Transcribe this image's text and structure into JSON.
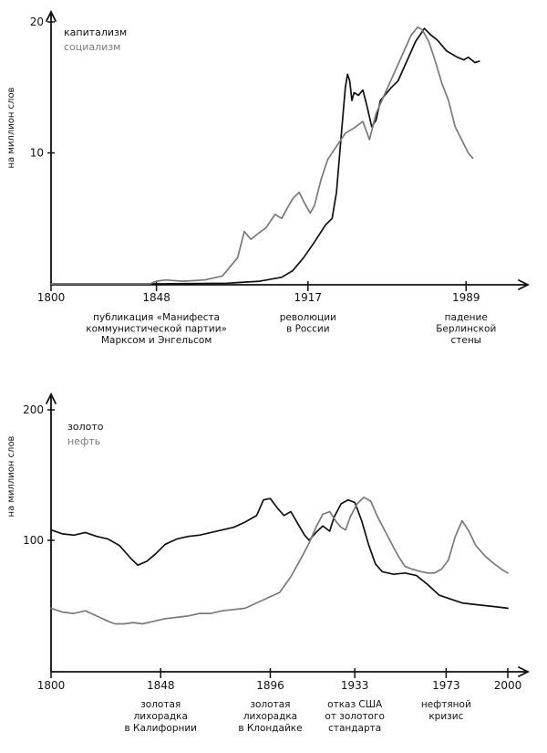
{
  "colors": {
    "black": "#111111",
    "gray": "#7a7a7a"
  },
  "chart_data": [
    {
      "type": "line",
      "ylabel": "на миллион слов",
      "xlim": [
        1800,
        2008
      ],
      "ylim": [
        0,
        20
      ],
      "yticks": [
        10,
        20
      ],
      "xticks": [
        1800,
        1848,
        1917,
        1989
      ],
      "legend": [
        {
          "name": "капитализм",
          "color": "#111111"
        },
        {
          "name": "социализм",
          "color": "#7a7a7a"
        }
      ],
      "annotations": [
        {
          "x": 1848,
          "lines": [
            "публикация «Манифеста",
            "коммунистической партии»",
            "Марксом и Энгельсом"
          ]
        },
        {
          "x": 1917,
          "lines": [
            "революции",
            "в России"
          ]
        },
        {
          "x": 1989,
          "lines": [
            "падение",
            "Берлинской",
            "стены"
          ]
        }
      ],
      "series": [
        {
          "name": "капитализм",
          "color": "#111111",
          "points": [
            [
              1800,
              0
            ],
            [
              1850,
              0
            ],
            [
              1880,
              0.05
            ],
            [
              1895,
              0.2
            ],
            [
              1905,
              0.5
            ],
            [
              1910,
              1
            ],
            [
              1915,
              2
            ],
            [
              1920,
              3.2
            ],
            [
              1925,
              4.5
            ],
            [
              1928,
              5
            ],
            [
              1930,
              7
            ],
            [
              1932,
              11
            ],
            [
              1934,
              15
            ],
            [
              1935,
              16
            ],
            [
              1936,
              15.5
            ],
            [
              1937,
              14
            ],
            [
              1938,
              14.6
            ],
            [
              1940,
              14.4
            ],
            [
              1942,
              14.8
            ],
            [
              1944,
              13.5
            ],
            [
              1946,
              12
            ],
            [
              1948,
              12.5
            ],
            [
              1950,
              14
            ],
            [
              1955,
              15
            ],
            [
              1958,
              15.5
            ],
            [
              1962,
              17
            ],
            [
              1966,
              18.5
            ],
            [
              1970,
              19.5
            ],
            [
              1973,
              19
            ],
            [
              1976,
              18.6
            ],
            [
              1980,
              17.8
            ],
            [
              1985,
              17.3
            ],
            [
              1988,
              17.1
            ],
            [
              1990,
              17.3
            ],
            [
              1993,
              16.9
            ],
            [
              1995,
              17
            ]
          ]
        },
        {
          "name": "социализм",
          "color": "#7a7a7a",
          "points": [
            [
              1800,
              0
            ],
            [
              1845,
              0
            ],
            [
              1848,
              0.2
            ],
            [
              1852,
              0.3
            ],
            [
              1860,
              0.2
            ],
            [
              1870,
              0.3
            ],
            [
              1878,
              0.6
            ],
            [
              1885,
              2
            ],
            [
              1888,
              4
            ],
            [
              1891,
              3.4
            ],
            [
              1894,
              3.8
            ],
            [
              1898,
              4.3
            ],
            [
              1902,
              5.3
            ],
            [
              1905,
              5
            ],
            [
              1910,
              6.5
            ],
            [
              1913,
              7
            ],
            [
              1915,
              6.3
            ],
            [
              1918,
              5.4
            ],
            [
              1920,
              6
            ],
            [
              1923,
              8
            ],
            [
              1926,
              9.5
            ],
            [
              1930,
              10.5
            ],
            [
              1934,
              11.5
            ],
            [
              1938,
              11.9
            ],
            [
              1942,
              12.4
            ],
            [
              1945,
              11
            ],
            [
              1948,
              13
            ],
            [
              1952,
              14.5
            ],
            [
              1956,
              16
            ],
            [
              1960,
              17.5
            ],
            [
              1964,
              19
            ],
            [
              1967,
              19.6
            ],
            [
              1969,
              19.4
            ],
            [
              1972,
              18.5
            ],
            [
              1975,
              17
            ],
            [
              1978,
              15.3
            ],
            [
              1981,
              14
            ],
            [
              1984,
              12
            ],
            [
              1987,
              11
            ],
            [
              1990,
              10
            ],
            [
              1992,
              9.6
            ]
          ]
        }
      ]
    },
    {
      "type": "line",
      "ylabel": "на миллион слов",
      "xlim": [
        1800,
        2000
      ],
      "ylim": [
        0,
        200
      ],
      "yticks": [
        100,
        200
      ],
      "xticks": [
        1800,
        1848,
        1896,
        1933,
        1973,
        2000
      ],
      "legend": [
        {
          "name": "золото",
          "color": "#111111"
        },
        {
          "name": "нефть",
          "color": "#7a7a7a"
        }
      ],
      "annotations": [
        {
          "x": 1848,
          "lines": [
            "золотая",
            "лихорадка",
            "в Калифорнии"
          ]
        },
        {
          "x": 1896,
          "lines": [
            "золотая",
            "лихорадка",
            "в Клондайке"
          ]
        },
        {
          "x": 1933,
          "lines": [
            "отказ США",
            "от золотого",
            "стандарта"
          ]
        },
        {
          "x": 1973,
          "lines": [
            "нефтяной",
            "кризис"
          ]
        }
      ],
      "series": [
        {
          "name": "золото",
          "color": "#111111",
          "points": [
            [
              1800,
              108
            ],
            [
              1805,
              105
            ],
            [
              1810,
              104
            ],
            [
              1815,
              106
            ],
            [
              1820,
              103
            ],
            [
              1825,
              101
            ],
            [
              1830,
              96
            ],
            [
              1835,
              86
            ],
            [
              1838,
              81
            ],
            [
              1842,
              84
            ],
            [
              1846,
              90
            ],
            [
              1850,
              97
            ],
            [
              1855,
              101
            ],
            [
              1860,
              103
            ],
            [
              1865,
              104
            ],
            [
              1870,
              106
            ],
            [
              1875,
              108
            ],
            [
              1880,
              110
            ],
            [
              1885,
              114
            ],
            [
              1890,
              119
            ],
            [
              1893,
              131
            ],
            [
              1896,
              132
            ],
            [
              1899,
              125
            ],
            [
              1902,
              119
            ],
            [
              1905,
              122
            ],
            [
              1908,
              113
            ],
            [
              1911,
              104
            ],
            [
              1913,
              100
            ],
            [
              1916,
              106
            ],
            [
              1919,
              111
            ],
            [
              1922,
              107
            ],
            [
              1924,
              118
            ],
            [
              1927,
              128
            ],
            [
              1930,
              131
            ],
            [
              1933,
              129
            ],
            [
              1936,
              115
            ],
            [
              1939,
              97
            ],
            [
              1942,
              82
            ],
            [
              1945,
              76
            ],
            [
              1950,
              74
            ],
            [
              1955,
              75
            ],
            [
              1960,
              73
            ],
            [
              1965,
              66
            ],
            [
              1970,
              58
            ],
            [
              1975,
              55
            ],
            [
              1980,
              52
            ],
            [
              1985,
              51
            ],
            [
              1990,
              50
            ],
            [
              1995,
              49
            ],
            [
              2000,
              48
            ]
          ]
        },
        {
          "name": "нефть",
          "color": "#7a7a7a",
          "points": [
            [
              1800,
              48
            ],
            [
              1805,
              45
            ],
            [
              1810,
              44
            ],
            [
              1815,
              46
            ],
            [
              1820,
              42
            ],
            [
              1825,
              38
            ],
            [
              1828,
              36
            ],
            [
              1832,
              36
            ],
            [
              1836,
              37
            ],
            [
              1840,
              36
            ],
            [
              1845,
              38
            ],
            [
              1850,
              40
            ],
            [
              1855,
              41
            ],
            [
              1860,
              42
            ],
            [
              1865,
              44
            ],
            [
              1870,
              44
            ],
            [
              1875,
              46
            ],
            [
              1880,
              47
            ],
            [
              1885,
              48
            ],
            [
              1890,
              52
            ],
            [
              1895,
              56
            ],
            [
              1900,
              60
            ],
            [
              1905,
              72
            ],
            [
              1910,
              88
            ],
            [
              1913,
              98
            ],
            [
              1916,
              110
            ],
            [
              1919,
              120
            ],
            [
              1922,
              122
            ],
            [
              1925,
              114
            ],
            [
              1927,
              110
            ],
            [
              1929,
              108
            ],
            [
              1931,
              118
            ],
            [
              1934,
              128
            ],
            [
              1937,
              133
            ],
            [
              1940,
              130
            ],
            [
              1943,
              118
            ],
            [
              1946,
              108
            ],
            [
              1949,
              98
            ],
            [
              1952,
              88
            ],
            [
              1955,
              80
            ],
            [
              1958,
              78
            ],
            [
              1962,
              76
            ],
            [
              1965,
              75
            ],
            [
              1968,
              75
            ],
            [
              1971,
              78
            ],
            [
              1974,
              85
            ],
            [
              1977,
              103
            ],
            [
              1980,
              115
            ],
            [
              1983,
              107
            ],
            [
              1986,
              96
            ],
            [
              1990,
              88
            ],
            [
              1994,
              82
            ],
            [
              1998,
              77
            ],
            [
              2000,
              75
            ]
          ]
        }
      ]
    }
  ]
}
